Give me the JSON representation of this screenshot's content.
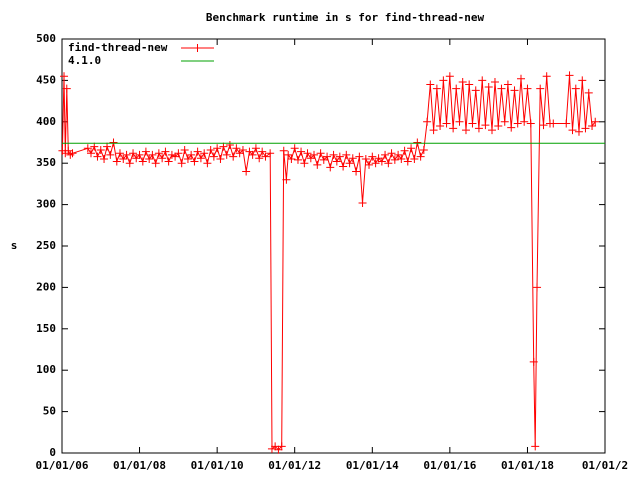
{
  "chart_data": {
    "type": "line",
    "title": "Benchmark runtime in s for find-thread-new",
    "y_label": "s",
    "xlim": [
      "2006-01-01",
      "2020-01-01"
    ],
    "xticks": [
      {
        "value": "2006-01-01",
        "label": "01/01/06"
      },
      {
        "value": "2008-01-01",
        "label": "01/01/08"
      },
      {
        "value": "2010-01-01",
        "label": "01/01/10"
      },
      {
        "value": "2012-01-01",
        "label": "01/01/12"
      },
      {
        "value": "2014-01-01",
        "label": "01/01/14"
      },
      {
        "value": "2016-01-01",
        "label": "01/01/16"
      },
      {
        "value": "2018-01-01",
        "label": "01/01/18"
      },
      {
        "value": "2020-01-01",
        "label": "01/01/2"
      }
    ],
    "ylim": [
      0,
      500
    ],
    "yticks": [
      0,
      50,
      100,
      150,
      200,
      250,
      300,
      350,
      400,
      450,
      500
    ],
    "grid": false,
    "legend": "top-left",
    "series": [
      {
        "name": "find-thread-new",
        "color": "#ff0000",
        "markers": true,
        "x": [
          "2006-01-05",
          "2006-01-20",
          "2006-02-01",
          "2006-02-15",
          "2006-03-01",
          "2006-03-20",
          "2006-04-10",
          "2006-09-01",
          "2006-10-01",
          "2006-11-01",
          "2006-12-01",
          "2007-01-01",
          "2007-02-01",
          "2007-03-01",
          "2007-04-01",
          "2007-05-01",
          "2007-06-01",
          "2007-07-01",
          "2007-08-01",
          "2007-09-01",
          "2007-10-01",
          "2007-11-01",
          "2007-12-01",
          "2008-01-01",
          "2008-02-01",
          "2008-03-01",
          "2008-04-01",
          "2008-05-01",
          "2008-06-01",
          "2008-07-01",
          "2008-08-01",
          "2008-09-01",
          "2008-10-01",
          "2008-11-01",
          "2008-12-01",
          "2009-01-01",
          "2009-02-01",
          "2009-03-01",
          "2009-04-01",
          "2009-05-01",
          "2009-06-01",
          "2009-07-01",
          "2009-08-01",
          "2009-09-01",
          "2009-10-01",
          "2009-11-01",
          "2009-12-01",
          "2010-01-01",
          "2010-02-01",
          "2010-03-01",
          "2010-04-01",
          "2010-05-01",
          "2010-06-01",
          "2010-07-01",
          "2010-08-01",
          "2010-09-01",
          "2010-10-01",
          "2010-11-01",
          "2010-12-01",
          "2011-01-01",
          "2011-02-01",
          "2011-03-01",
          "2011-04-01",
          "2011-05-15",
          "2011-06-01",
          "2011-07-01",
          "2011-08-01",
          "2011-09-01",
          "2011-09-20",
          "2011-10-15",
          "2011-11-01",
          "2011-12-01",
          "2012-01-01",
          "2012-02-01",
          "2012-03-01",
          "2012-04-01",
          "2012-05-01",
          "2012-06-01",
          "2012-07-01",
          "2012-08-01",
          "2012-09-01",
          "2012-10-01",
          "2012-11-01",
          "2012-12-01",
          "2013-01-01",
          "2013-02-01",
          "2013-03-01",
          "2013-04-01",
          "2013-05-01",
          "2013-06-01",
          "2013-07-01",
          "2013-08-01",
          "2013-09-01",
          "2013-10-01",
          "2013-11-01",
          "2013-12-01",
          "2014-01-01",
          "2014-02-01",
          "2014-03-01",
          "2014-04-01",
          "2014-05-01",
          "2014-06-01",
          "2014-07-01",
          "2014-08-01",
          "2014-09-01",
          "2014-10-01",
          "2014-11-01",
          "2014-12-01",
          "2015-01-01",
          "2015-02-01",
          "2015-03-01",
          "2015-04-01",
          "2015-05-01",
          "2015-06-01",
          "2015-07-01",
          "2015-08-01",
          "2015-09-01",
          "2015-10-01",
          "2015-11-01",
          "2015-12-01",
          "2016-01-01",
          "2016-02-01",
          "2016-03-01",
          "2016-04-01",
          "2016-05-01",
          "2016-06-01",
          "2016-07-01",
          "2016-08-01",
          "2016-09-01",
          "2016-10-01",
          "2016-11-01",
          "2016-12-01",
          "2017-01-01",
          "2017-02-01",
          "2017-03-01",
          "2017-04-01",
          "2017-05-01",
          "2017-06-01",
          "2017-07-01",
          "2017-08-01",
          "2017-09-01",
          "2017-10-01",
          "2017-11-01",
          "2017-12-01",
          "2018-01-01",
          "2018-02-01",
          "2018-03-01",
          "2018-03-15",
          "2018-04-01",
          "2018-05-01",
          "2018-06-01",
          "2018-07-01",
          "2018-08-01",
          "2018-09-01",
          "2019-01-01",
          "2019-02-01",
          "2019-03-01",
          "2019-04-01",
          "2019-05-01",
          "2019-06-01",
          "2019-07-01",
          "2019-08-01",
          "2019-09-01",
          "2019-10-01"
        ],
        "values": [
          365,
          455,
          362,
          440,
          365,
          360,
          362,
          368,
          362,
          370,
          358,
          366,
          355,
          370,
          360,
          375,
          352,
          362,
          355,
          360,
          350,
          362,
          356,
          360,
          352,
          364,
          355,
          360,
          350,
          362,
          356,
          364,
          352,
          360,
          358,
          362,
          350,
          366,
          355,
          360,
          352,
          364,
          356,
          362,
          350,
          366,
          358,
          368,
          355,
          370,
          360,
          372,
          358,
          368,
          362,
          366,
          340,
          364,
          360,
          368,
          356,
          364,
          358,
          362,
          5,
          8,
          4,
          8,
          365,
          330,
          360,
          355,
          368,
          354,
          364,
          350,
          362,
          356,
          360,
          348,
          362,
          354,
          358,
          345,
          360,
          352,
          358,
          346,
          360,
          350,
          356,
          340,
          358,
          302,
          355,
          348,
          358,
          350,
          356,
          352,
          360,
          350,
          362,
          354,
          360,
          355,
          365,
          352,
          368,
          355,
          375,
          358,
          366,
          400,
          445,
          390,
          440,
          395,
          450,
          398,
          455,
          392,
          440,
          400,
          448,
          390,
          445,
          398,
          438,
          392,
          450,
          396,
          442,
          390,
          448,
          395,
          440,
          400,
          445,
          393,
          438,
          398,
          452,
          400,
          440,
          398,
          110,
          8,
          200,
          440,
          396,
          455,
          398,
          398,
          398,
          456,
          390,
          440,
          388,
          450,
          392,
          435,
          395,
          400
        ]
      },
      {
        "name": "4.1.0",
        "color": "#00a000",
        "markers": false,
        "x": [
          "2006-01-01",
          "2020-01-01"
        ],
        "values": [
          374,
          374
        ]
      }
    ]
  }
}
